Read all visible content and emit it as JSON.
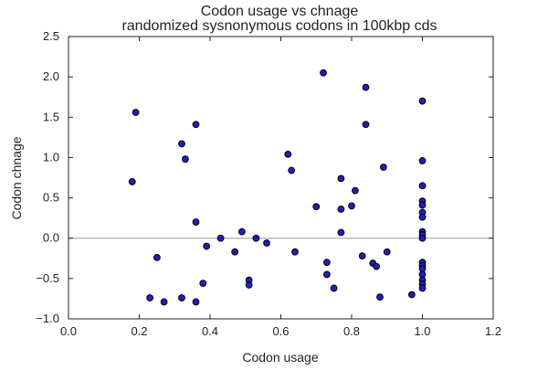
{
  "chart_data": {
    "type": "scatter",
    "title": [
      "Codon usage vs chnage",
      "randomized sysnonymous codons in 100kbp cds"
    ],
    "xlabel": "Codon usage",
    "ylabel": "Codon chnage",
    "xlim": [
      0.0,
      1.2
    ],
    "ylim": [
      -1.0,
      2.5
    ],
    "xticks": [
      "0.0",
      "0.2",
      "0.4",
      "0.6",
      "0.8",
      "1.0",
      "1.2"
    ],
    "yticks": [
      "−1.0",
      "−0.5",
      "0.0",
      "0.5",
      "1.0",
      "1.5",
      "2.0",
      "2.5"
    ],
    "grid": false,
    "reference_line_y": 0.0,
    "colors": {
      "marker_fill": "#1f1fbf",
      "marker_edge": "#000000",
      "reference_line": "#bbbbbb"
    },
    "points": [
      [
        0.18,
        0.7
      ],
      [
        0.19,
        1.56
      ],
      [
        0.23,
        -0.74
      ],
      [
        0.25,
        -0.24
      ],
      [
        0.27,
        -0.79
      ],
      [
        0.32,
        -0.74
      ],
      [
        0.32,
        1.17
      ],
      [
        0.33,
        0.98
      ],
      [
        0.36,
        1.41
      ],
      [
        0.36,
        0.2
      ],
      [
        0.36,
        -0.79
      ],
      [
        0.38,
        -0.56
      ],
      [
        0.39,
        -0.1
      ],
      [
        0.43,
        0.0
      ],
      [
        0.47,
        -0.17
      ],
      [
        0.49,
        0.08
      ],
      [
        0.51,
        -0.52
      ],
      [
        0.51,
        -0.58
      ],
      [
        0.53,
        0.0
      ],
      [
        0.56,
        -0.06
      ],
      [
        0.62,
        1.04
      ],
      [
        0.63,
        0.84
      ],
      [
        0.64,
        -0.17
      ],
      [
        0.7,
        0.39
      ],
      [
        0.72,
        2.05
      ],
      [
        0.73,
        -0.3
      ],
      [
        0.73,
        -0.45
      ],
      [
        0.75,
        -0.62
      ],
      [
        0.77,
        0.74
      ],
      [
        0.77,
        0.36
      ],
      [
        0.77,
        0.07
      ],
      [
        0.8,
        0.4
      ],
      [
        0.81,
        0.59
      ],
      [
        0.83,
        -0.22
      ],
      [
        0.84,
        1.87
      ],
      [
        0.84,
        1.41
      ],
      [
        0.86,
        -0.31
      ],
      [
        0.87,
        -0.35
      ],
      [
        0.88,
        -0.73
      ],
      [
        0.89,
        0.88
      ],
      [
        0.9,
        -0.17
      ],
      [
        0.97,
        -0.7
      ],
      [
        1.0,
        1.7
      ],
      [
        1.0,
        0.96
      ],
      [
        1.0,
        0.65
      ],
      [
        1.0,
        0.46
      ],
      [
        1.0,
        0.41
      ],
      [
        1.0,
        0.32
      ],
      [
        1.0,
        0.26
      ],
      [
        1.0,
        0.08
      ],
      [
        1.0,
        0.04
      ],
      [
        1.0,
        0.0
      ],
      [
        1.0,
        -0.3
      ],
      [
        1.0,
        -0.34
      ],
      [
        1.0,
        -0.38
      ],
      [
        1.0,
        -0.45
      ],
      [
        1.0,
        -0.52
      ],
      [
        1.0,
        -0.57
      ],
      [
        1.0,
        -0.62
      ]
    ]
  }
}
